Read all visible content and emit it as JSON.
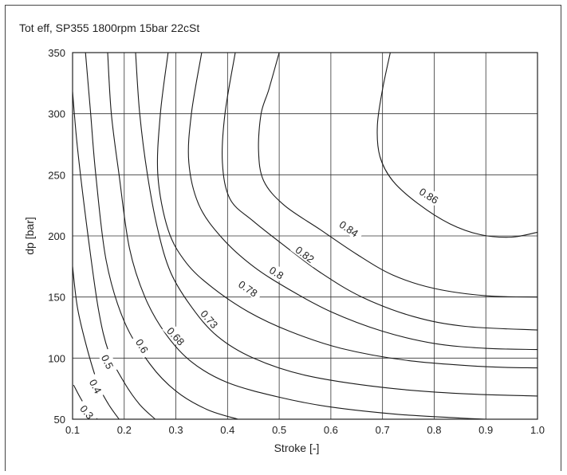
{
  "chart_data": {
    "type": "contour",
    "title": "Tot eff, SP355 1800rpm 15bar 22cSt",
    "xlabel": "Stroke [-]",
    "ylabel": "dp [bar]",
    "xlim": [
      0.1,
      1.0
    ],
    "ylim": [
      50,
      350
    ],
    "x_ticks": [
      "0.1",
      "0.2",
      "0.3",
      "0.4",
      "0.5",
      "0.6",
      "0.7",
      "0.8",
      "0.9",
      "1.0"
    ],
    "y_ticks": [
      "50",
      "100",
      "150",
      "200",
      "250",
      "300",
      "350"
    ],
    "grid": true,
    "contours": [
      {
        "level": "0.3",
        "points": [
          [
            0.102,
            78
          ],
          [
            0.12,
            64
          ],
          [
            0.14,
            54
          ],
          [
            0.148,
            50
          ]
        ],
        "label_at": [
          0.128,
          56
        ]
      },
      {
        "level": "0.4",
        "points": [
          [
            0.1,
            175
          ],
          [
            0.11,
            140
          ],
          [
            0.13,
            105
          ],
          [
            0.15,
            78
          ],
          [
            0.17,
            62
          ],
          [
            0.19,
            50
          ]
        ],
        "label_at": [
          0.145,
          77
        ]
      },
      {
        "level": "0.5",
        "points": [
          [
            0.1,
            318
          ],
          [
            0.11,
            270
          ],
          [
            0.13,
            200
          ],
          [
            0.15,
            140
          ],
          [
            0.17,
            105
          ],
          [
            0.2,
            80
          ],
          [
            0.23,
            62
          ],
          [
            0.26,
            50
          ]
        ],
        "label_at": [
          0.168,
          97
        ]
      },
      {
        "level": "0.6",
        "points": [
          [
            0.125,
            350
          ],
          [
            0.135,
            300
          ],
          [
            0.145,
            250
          ],
          [
            0.165,
            180
          ],
          [
            0.2,
            130
          ],
          [
            0.25,
            95
          ],
          [
            0.3,
            73
          ],
          [
            0.36,
            58
          ],
          [
            0.42,
            50
          ]
        ],
        "label_at": [
          0.235,
          110
        ]
      },
      {
        "level": "0.68",
        "points": [
          [
            0.168,
            350
          ],
          [
            0.175,
            300
          ],
          [
            0.19,
            250
          ],
          [
            0.21,
            190
          ],
          [
            0.24,
            150
          ],
          [
            0.28,
            120
          ],
          [
            0.33,
            97
          ],
          [
            0.4,
            80
          ],
          [
            0.5,
            68
          ],
          [
            0.6,
            60
          ],
          [
            0.73,
            54
          ],
          [
            0.85,
            51
          ],
          [
            0.9,
            50
          ]
        ],
        "label_at": [
          0.3,
          118
        ]
      },
      {
        "level": "0.73",
        "points": [
          [
            0.222,
            350
          ],
          [
            0.23,
            300
          ],
          [
            0.245,
            250
          ],
          [
            0.265,
            205
          ],
          [
            0.29,
            170
          ],
          [
            0.33,
            142
          ],
          [
            0.38,
            118
          ],
          [
            0.45,
            100
          ],
          [
            0.55,
            86
          ],
          [
            0.7,
            76
          ],
          [
            0.85,
            71
          ],
          [
            1.0,
            69
          ]
        ],
        "label_at": [
          0.365,
          132
        ]
      },
      {
        "level": "0.78",
        "points": [
          [
            0.285,
            350
          ],
          [
            0.27,
            300
          ],
          [
            0.265,
            250
          ],
          [
            0.285,
            205
          ],
          [
            0.32,
            178
          ],
          [
            0.37,
            158
          ],
          [
            0.44,
            138
          ],
          [
            0.52,
            122
          ],
          [
            0.62,
            108
          ],
          [
            0.75,
            98
          ],
          [
            0.9,
            93
          ],
          [
            1.0,
            92
          ]
        ],
        "label_at": [
          0.44,
          157
        ]
      },
      {
        "level": "0.8",
        "points": [
          [
            0.35,
            350
          ],
          [
            0.33,
            300
          ],
          [
            0.325,
            260
          ],
          [
            0.345,
            225
          ],
          [
            0.39,
            198
          ],
          [
            0.45,
            175
          ],
          [
            0.52,
            156
          ],
          [
            0.6,
            138
          ],
          [
            0.7,
            122
          ],
          [
            0.8,
            112
          ],
          [
            0.9,
            108
          ],
          [
            1.0,
            107
          ]
        ],
        "label_at": [
          0.495,
          170
        ]
      },
      {
        "level": "0.82",
        "points": [
          [
            0.415,
            350
          ],
          [
            0.395,
            300
          ],
          [
            0.39,
            260
          ],
          [
            0.405,
            230
          ],
          [
            0.45,
            212
          ],
          [
            0.51,
            192
          ],
          [
            0.58,
            170
          ],
          [
            0.66,
            150
          ],
          [
            0.76,
            134
          ],
          [
            0.86,
            126
          ],
          [
            1.0,
            123
          ]
        ],
        "label_at": [
          0.55,
          185
        ]
      },
      {
        "level": "0.84",
        "points": [
          [
            0.5,
            350
          ],
          [
            0.48,
            320
          ],
          [
            0.465,
            300
          ],
          [
            0.46,
            270
          ],
          [
            0.47,
            245
          ],
          [
            0.51,
            225
          ],
          [
            0.58,
            205
          ],
          [
            0.65,
            185
          ],
          [
            0.72,
            168
          ],
          [
            0.8,
            157
          ],
          [
            0.9,
            151
          ],
          [
            1.0,
            150
          ]
        ],
        "label_at": [
          0.635,
          206
        ]
      },
      {
        "level": "0.86",
        "points": [
          [
            0.715,
            350
          ],
          [
            0.7,
            320
          ],
          [
            0.69,
            290
          ],
          [
            0.695,
            265
          ],
          [
            0.72,
            245
          ],
          [
            0.77,
            226
          ],
          [
            0.83,
            210
          ],
          [
            0.89,
            201
          ],
          [
            0.95,
            199
          ],
          [
            1.0,
            203
          ]
        ],
        "label_at": [
          0.79,
          233
        ]
      }
    ]
  }
}
